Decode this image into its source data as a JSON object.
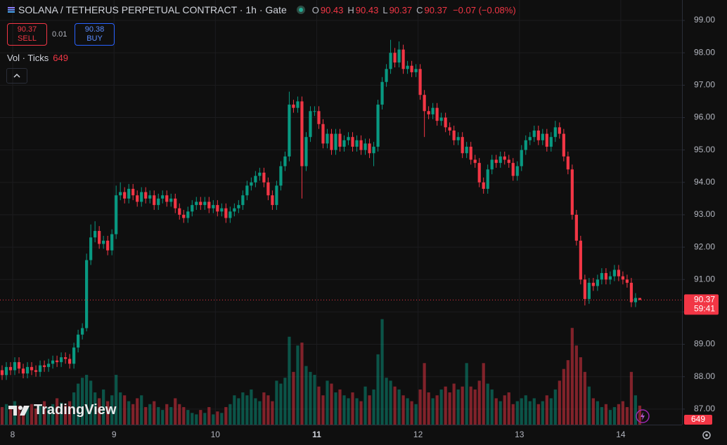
{
  "header": {
    "title": "SOLANA / TETHERUS PERPETUAL CONTRACT · 1h · Gate",
    "ohlc_keys": [
      "O",
      "H",
      "L",
      "C"
    ],
    "change": "−0.07 (−0.08%)"
  },
  "trade": {
    "sell": "SELL",
    "spread": 0.01,
    "buy_price": 90.38,
    "buy": "BUY"
  },
  "indicator": {
    "label": "Vol · Ticks"
  },
  "countdown": "59:41",
  "logo": "TradingView",
  "chart_data": {
    "type": "candlestick",
    "up_color": "#089981",
    "down_color": "#f23645",
    "grid": true,
    "xlim": [
      -0.5,
      161
    ],
    "ylim": [
      86.52,
      99.63
    ],
    "volume_lim": [
      0,
      4000
    ],
    "xticks": [
      {
        "value": 2.5,
        "label": "8"
      },
      {
        "value": 26.5,
        "label": "9"
      },
      {
        "value": 50.5,
        "label": "10"
      },
      {
        "value": 74.5,
        "label": "11"
      },
      {
        "value": 98.5,
        "label": "12"
      },
      {
        "value": 122.5,
        "label": "13"
      },
      {
        "value": 146.5,
        "label": "14"
      }
    ],
    "yticks": [
      {
        "value": 87,
        "label": "87.00"
      },
      {
        "value": 88,
        "label": "88.00"
      },
      {
        "value": 89,
        "label": "89.00"
      },
      {
        "value": 90,
        "label": "90.00"
      },
      {
        "value": 91,
        "label": "91.00"
      },
      {
        "value": 92,
        "label": "92.00"
      },
      {
        "value": 93,
        "label": "93.00"
      },
      {
        "value": 94,
        "label": "94.00"
      },
      {
        "value": 95,
        "label": "95.00"
      },
      {
        "value": 96,
        "label": "96.00"
      },
      {
        "value": 97,
        "label": "97.00"
      },
      {
        "value": 98,
        "label": "98.00"
      },
      {
        "value": 99,
        "label": "99.00"
      }
    ],
    "open": [
      88.2,
      88.05,
      88.3,
      88.2,
      88.45,
      88.25,
      88.1,
      88.3,
      88.2,
      88.15,
      88.35,
      88.3,
      88.4,
      88.5,
      88.45,
      88.6,
      88.55,
      88.4,
      88.9,
      89.3,
      89.5,
      91.6,
      92.3,
      92.5,
      92.1,
      92.2,
      91.9,
      92.4,
      93.6,
      93.7,
      93.5,
      93.8,
      93.6,
      93.4,
      93.7,
      93.5,
      93.6,
      93.3,
      93.5,
      93.6,
      93.4,
      93.5,
      93.2,
      93.0,
      92.9,
      93.1,
      93.3,
      93.4,
      93.3,
      93.4,
      93.2,
      93.3,
      93.1,
      93.2,
      92.9,
      93.1,
      93.2,
      93.3,
      93.6,
      93.9,
      94.0,
      94.2,
      94.3,
      94.0,
      93.6,
      93.3,
      93.9,
      94.5,
      94.8,
      96.4,
      96.3,
      96.5,
      94.5,
      95.4,
      96.2,
      96.2,
      95.8,
      95.2,
      95.5,
      95.0,
      95.5,
      95.1,
      95.3,
      95.4,
      95.1,
      95.3,
      95.0,
      95.2,
      94.9,
      95.1,
      96.4,
      97.1,
      97.5,
      98.0,
      97.7,
      98.1,
      97.5,
      97.6,
      97.4,
      97.5,
      96.7,
      96.2,
      96.1,
      96.3,
      95.9,
      96.0,
      95.7,
      95.6,
      95.3,
      95.4,
      94.9,
      95.1,
      94.7,
      94.6,
      94.0,
      93.8,
      94.4,
      94.7,
      94.6,
      94.8,
      94.7,
      94.6,
      94.2,
      94.5,
      95.0,
      95.3,
      95.4,
      95.6,
      95.3,
      95.5,
      95.1,
      95.4,
      95.7,
      95.5,
      94.8,
      94.4,
      93.0,
      92.2,
      91.0,
      90.4,
      90.9,
      90.8,
      91.0,
      91.2,
      91.0,
      91.1,
      91.3,
      91.1,
      91.0,
      90.9,
      90.3,
      90.43
    ],
    "high": [
      88.35,
      88.45,
      88.45,
      88.6,
      88.6,
      88.4,
      88.45,
      88.45,
      88.35,
      88.5,
      88.5,
      88.55,
      88.65,
      88.65,
      88.75,
      88.75,
      88.7,
      89.05,
      89.45,
      89.65,
      91.8,
      92.7,
      92.8,
      92.65,
      92.35,
      92.35,
      92.55,
      93.9,
      94.0,
      93.85,
      93.95,
      93.95,
      93.75,
      93.85,
      93.85,
      93.75,
      93.75,
      93.65,
      93.75,
      93.75,
      93.65,
      93.65,
      93.35,
      93.15,
      93.25,
      93.45,
      93.55,
      93.55,
      93.55,
      93.55,
      93.45,
      93.45,
      93.35,
      93.35,
      93.25,
      93.35,
      93.45,
      93.75,
      94.05,
      94.15,
      94.35,
      94.45,
      94.45,
      94.15,
      93.75,
      94.05,
      94.65,
      94.95,
      96.8,
      96.55,
      96.65,
      96.65,
      95.55,
      96.35,
      96.35,
      96.35,
      95.95,
      95.65,
      95.65,
      95.65,
      95.65,
      95.45,
      95.55,
      95.55,
      95.45,
      95.45,
      95.35,
      95.35,
      95.25,
      96.55,
      97.25,
      97.65,
      98.4,
      98.15,
      98.35,
      98.25,
      97.75,
      97.75,
      97.65,
      97.65,
      96.85,
      96.35,
      96.45,
      96.45,
      96.15,
      96.15,
      95.85,
      95.75,
      95.55,
      95.55,
      95.25,
      95.25,
      94.85,
      94.75,
      94.15,
      94.55,
      94.85,
      94.85,
      94.95,
      94.95,
      94.85,
      94.75,
      94.65,
      95.15,
      95.45,
      95.55,
      95.75,
      95.75,
      95.65,
      95.65,
      95.55,
      95.9,
      95.85,
      95.65,
      94.95,
      94.55,
      93.15,
      92.35,
      91.15,
      91.05,
      91.05,
      91.15,
      91.35,
      91.35,
      91.25,
      91.45,
      91.45,
      91.25,
      91.15,
      91.05,
      90.58,
      90.43
    ],
    "low": [
      87.9,
      87.9,
      88.05,
      88.05,
      88.1,
      87.95,
      87.95,
      88.05,
      88.0,
      88.0,
      88.15,
      88.15,
      88.25,
      88.3,
      88.3,
      88.4,
      88.25,
      88.25,
      88.75,
      89.15,
      89.4,
      91.45,
      92.15,
      91.95,
      91.95,
      91.75,
      91.75,
      92.25,
      93.45,
      93.35,
      93.35,
      93.45,
      93.25,
      93.25,
      93.35,
      93.35,
      93.15,
      93.15,
      93.35,
      93.25,
      93.25,
      93.05,
      92.85,
      92.75,
      92.75,
      92.95,
      93.15,
      93.15,
      93.15,
      93.05,
      93.05,
      92.95,
      92.95,
      92.75,
      92.75,
      92.95,
      93.05,
      93.15,
      93.45,
      93.75,
      93.85,
      94.05,
      93.85,
      93.45,
      93.15,
      93.15,
      93.75,
      94.35,
      94.65,
      96.15,
      96.15,
      93.5,
      94.35,
      95.25,
      96.05,
      95.65,
      95.05,
      95.05,
      94.85,
      94.85,
      94.95,
      94.95,
      95.15,
      94.95,
      94.95,
      94.85,
      94.85,
      94.75,
      94.5,
      94.95,
      96.25,
      96.95,
      97.35,
      97.55,
      97.55,
      97.35,
      97.35,
      97.25,
      97.25,
      96.55,
      95.4,
      95.95,
      95.95,
      95.75,
      95.75,
      95.55,
      95.45,
      95.15,
      95.15,
      94.75,
      94.75,
      94.55,
      94.45,
      93.85,
      93.65,
      93.65,
      94.25,
      94.45,
      94.45,
      94.55,
      94.45,
      94.05,
      94.05,
      94.35,
      94.85,
      95.15,
      95.25,
      95.15,
      95.15,
      94.95,
      94.95,
      95.25,
      95.35,
      94.65,
      94.25,
      92.85,
      92.05,
      90.85,
      90.2,
      90.25,
      90.65,
      90.65,
      90.85,
      90.85,
      90.85,
      90.95,
      90.95,
      90.85,
      90.75,
      90.15,
      90.15,
      90.37
    ],
    "close": [
      88.05,
      88.3,
      88.2,
      88.45,
      88.25,
      88.1,
      88.3,
      88.2,
      88.15,
      88.35,
      88.3,
      88.4,
      88.5,
      88.45,
      88.6,
      88.55,
      88.4,
      88.9,
      89.3,
      89.5,
      91.6,
      92.3,
      92.5,
      92.1,
      92.2,
      91.9,
      92.4,
      93.6,
      93.7,
      93.5,
      93.8,
      93.6,
      93.4,
      93.7,
      93.5,
      93.6,
      93.3,
      93.5,
      93.6,
      93.4,
      93.5,
      93.2,
      93.0,
      92.9,
      93.1,
      93.3,
      93.4,
      93.3,
      93.4,
      93.2,
      93.3,
      93.1,
      93.2,
      92.9,
      93.1,
      93.2,
      93.3,
      93.6,
      93.9,
      94.0,
      94.2,
      94.3,
      94.0,
      93.6,
      93.3,
      93.9,
      94.5,
      94.8,
      96.4,
      96.3,
      96.5,
      94.5,
      95.4,
      96.2,
      96.2,
      95.8,
      95.2,
      95.5,
      95.0,
      95.5,
      95.1,
      95.3,
      95.4,
      95.1,
      95.3,
      95.0,
      95.2,
      94.9,
      95.1,
      96.4,
      97.1,
      97.5,
      98.0,
      97.7,
      98.1,
      97.5,
      97.6,
      97.4,
      97.5,
      96.7,
      96.2,
      96.1,
      96.3,
      95.9,
      96.0,
      95.7,
      95.6,
      95.3,
      95.4,
      94.9,
      95.1,
      94.7,
      94.6,
      94.0,
      93.8,
      94.4,
      94.7,
      94.6,
      94.8,
      94.7,
      94.6,
      94.2,
      94.5,
      95.0,
      95.3,
      95.4,
      95.6,
      95.3,
      95.5,
      95.1,
      95.4,
      95.7,
      95.5,
      94.8,
      94.4,
      93.0,
      92.2,
      91.0,
      90.4,
      90.9,
      90.8,
      91.0,
      91.2,
      91.0,
      91.1,
      91.3,
      91.1,
      91.0,
      90.9,
      90.3,
      90.43,
      90.37
    ],
    "volume": [
      600,
      700,
      550,
      800,
      650,
      500,
      600,
      700,
      550,
      650,
      800,
      600,
      700,
      900,
      750,
      650,
      800,
      1100,
      1400,
      1600,
      1700,
      1500,
      1100,
      900,
      1200,
      800,
      1000,
      1700,
      1100,
      1000,
      800,
      700,
      900,
      1000,
      600,
      700,
      800,
      600,
      500,
      700,
      600,
      900,
      700,
      600,
      500,
      400,
      350,
      500,
      400,
      600,
      350,
      450,
      400,
      600,
      700,
      1000,
      900,
      1100,
      1000,
      1200,
      900,
      800,
      1100,
      1000,
      800,
      1500,
      1400,
      1600,
      3000,
      1800,
      2700,
      2800,
      2000,
      1800,
      1700,
      1300,
      1000,
      1500,
      1400,
      1100,
      1200,
      1000,
      900,
      1100,
      900,
      800,
      1300,
      1000,
      1200,
      2400,
      3600,
      1600,
      1500,
      1300,
      1200,
      1000,
      900,
      800,
      700,
      1200,
      2100,
      1100,
      900,
      1000,
      1200,
      1300,
      1100,
      1400,
      1200,
      1300,
      2100,
      1300,
      1200,
      1500,
      2100,
      1400,
      1200,
      900,
      800,
      1000,
      1100,
      700,
      800,
      900,
      1000,
      800,
      900,
      700,
      800,
      1000,
      900,
      1200,
      1500,
      1900,
      2200,
      3300,
      2700,
      2300,
      1800,
      1300,
      900,
      800,
      600,
      700,
      500,
      600,
      700,
      800,
      600,
      1800,
      1000,
      649
    ]
  }
}
